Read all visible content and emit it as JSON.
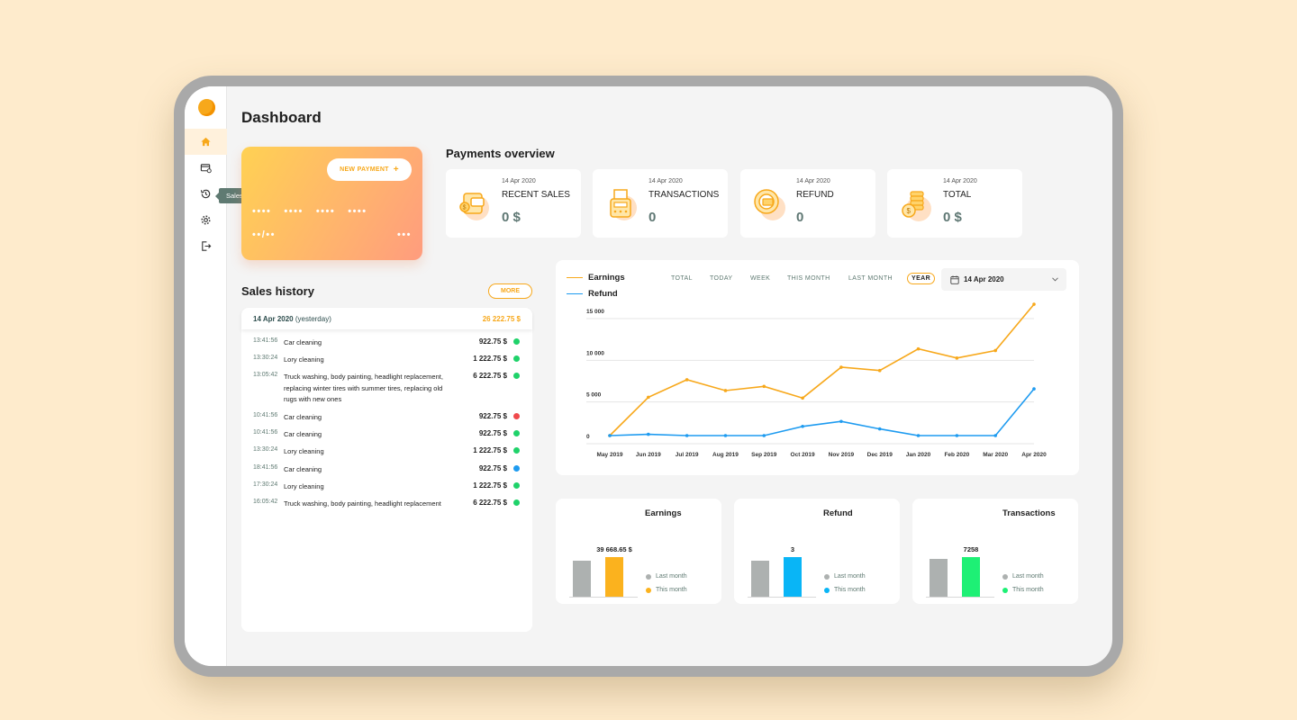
{
  "page": {
    "title": "Dashboard"
  },
  "sidebar": {
    "items": [
      {
        "name": "home",
        "active": true
      },
      {
        "name": "payments",
        "active": false
      },
      {
        "name": "sales-history",
        "active": false
      },
      {
        "name": "settings",
        "active": false
      },
      {
        "name": "logout",
        "active": false
      }
    ],
    "tooltip": "Sales history"
  },
  "card": {
    "new_payment_label": "NEW PAYMENT",
    "new_payment_icon": "+",
    "number_groups": [
      "••••",
      "••••",
      "••••",
      "••••"
    ],
    "expiry": "••/••",
    "cvv": "•••"
  },
  "payments_overview": {
    "title": "Payments overview",
    "stats": [
      {
        "date": "14 Apr 2020",
        "label": "RECENT SALES",
        "value": "0 $",
        "icon": "wallet-icon"
      },
      {
        "date": "14 Apr 2020",
        "label": "TRANSACTIONS",
        "value": "0",
        "icon": "pos-terminal-icon"
      },
      {
        "date": "14 Apr 2020",
        "label": "REFUND",
        "value": "0",
        "icon": "refund-icon"
      },
      {
        "date": "14 Apr 2020",
        "label": "TOTAL",
        "value": "0 $",
        "icon": "coins-icon"
      }
    ]
  },
  "sales_history": {
    "title": "Sales history",
    "more_label": "MORE",
    "date_header": "14 Apr 2020",
    "date_suffix": "(yesterday)",
    "day_total": "26 222.75 $",
    "rows": [
      {
        "time": "13:41:56",
        "description": "Car cleaning",
        "amount": "922.75 $",
        "status": "success"
      },
      {
        "time": "13:30:24",
        "description": "Lory cleaning",
        "amount": "1 222.75 $",
        "status": "success"
      },
      {
        "time": "13:05:42",
        "description": "Truck washing, body painting, headlight replacement, replacing winter tires with summer tires, replacing old rugs with new ones",
        "amount": "6 222.75 $",
        "status": "success"
      },
      {
        "time": "10:41:56",
        "description": "Car cleaning",
        "amount": "922.75 $",
        "status": "failed"
      },
      {
        "time": "10:41:56",
        "description": "Car cleaning",
        "amount": "922.75 $",
        "status": "success"
      },
      {
        "time": "13:30:24",
        "description": "Lory cleaning",
        "amount": "1 222.75 $",
        "status": "success"
      },
      {
        "time": "18:41:56",
        "description": "Car cleaning",
        "amount": "922.75 $",
        "status": "pending"
      },
      {
        "time": "17:30:24",
        "description": "Lory cleaning",
        "amount": "1 222.75 $",
        "status": "success"
      },
      {
        "time": "16:05:42",
        "description": "Truck washing, body painting, headlight replacement",
        "amount": "6 222.75 $",
        "status": "success"
      }
    ],
    "status_colors": {
      "success": "#1FD26A",
      "failed": "#F0494C",
      "pending": "#1E9BF0"
    }
  },
  "chart_filters": {
    "options": [
      "TOTAL",
      "TODAY",
      "WEEK",
      "THIS MONTH",
      "LAST MONTH",
      "YEAR"
    ],
    "selected": "YEAR",
    "date": "14 Apr 2020"
  },
  "colors": {
    "accent": "#F7A81B",
    "refund": "#1E9BF0",
    "muted": "#5F7A72",
    "background": "#FEEBCC"
  },
  "chart_data": {
    "type": "line",
    "x": [
      "May 2019",
      "Jun 2019",
      "Jul 2019",
      "Aug 2019",
      "Sep 2019",
      "Oct 2019",
      "Nov 2019",
      "Dec 2019",
      "Jan 2020",
      "Feb 2020",
      "Mar 2020",
      "Apr 2020"
    ],
    "series": [
      {
        "name": "Earnings",
        "color": "#F7A81B",
        "values": [
          0,
          4600,
          6700,
          5400,
          5900,
          4500,
          8200,
          7800,
          10400,
          9300,
          10200,
          15800
        ]
      },
      {
        "name": "Refund",
        "color": "#1E9BF0",
        "values": [
          0,
          150,
          0,
          0,
          0,
          1100,
          1700,
          800,
          0,
          0,
          0,
          5600
        ]
      }
    ],
    "y_ticks": [
      "0",
      "5 000",
      "10 000",
      "15 000"
    ],
    "ylim": [
      0,
      16000
    ],
    "grid": true,
    "legend_position": "top-left"
  },
  "summary_charts": [
    {
      "title": "Earnings",
      "last_month": 36500,
      "this_month": 39668.65,
      "this_month_label": "39 668.65 $",
      "color": "#FBB21E",
      "legend": [
        "Last month",
        "This month"
      ]
    },
    {
      "title": "Refund",
      "last_month": 2.7,
      "this_month": 3,
      "this_month_label": "3",
      "color": "#09B5F6",
      "legend": [
        "Last month",
        "This month"
      ]
    },
    {
      "title": "Transactions",
      "last_month": 7000,
      "this_month": 7258,
      "this_month_label": "7258",
      "color": "#1EF075",
      "legend": [
        "Last month",
        "This month"
      ]
    }
  ]
}
